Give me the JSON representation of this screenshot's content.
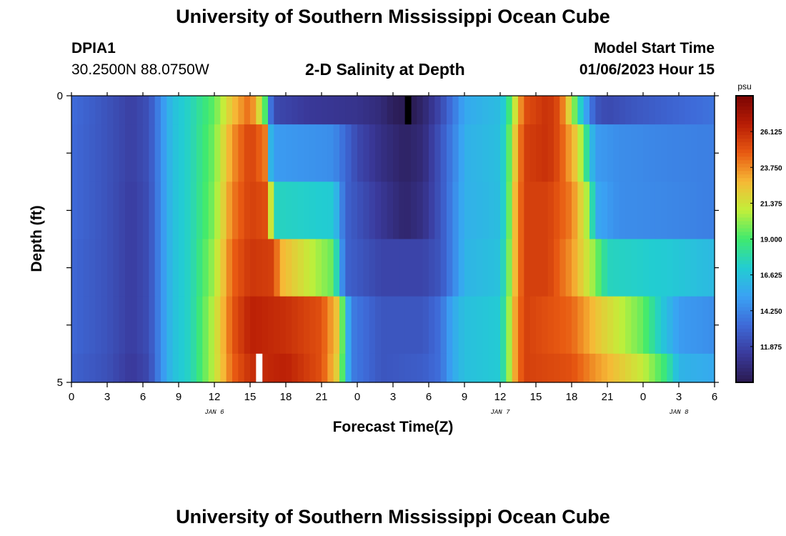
{
  "header": {
    "title": "University of Southern Mississippi Ocean Cube",
    "station_id": "DPIA1",
    "station_coords": "30.2500N  88.0750W",
    "model_start_label": "Model Start Time",
    "model_start_value": "01/06/2023 Hour 15"
  },
  "footer": {
    "title": "University of Southern Mississippi Ocean Cube"
  },
  "chart_data": {
    "type": "heatmap",
    "title": "2-D Salinity at Depth",
    "xlabel": "Forecast Time(Z)",
    "ylabel": "Depth (ft)",
    "x_tick_labels": [
      "0",
      "3",
      "6",
      "9",
      "12",
      "15",
      "18",
      "21",
      "0",
      "3",
      "6",
      "9",
      "12",
      "15",
      "18",
      "21",
      "0",
      "3",
      "6"
    ],
    "x_range_hours": [
      0,
      54
    ],
    "date_labels": [
      {
        "text": "JAN 6",
        "hour": 12
      },
      {
        "text": "JAN 7",
        "hour": 36
      },
      {
        "text": "JAN 8",
        "hour": 51
      }
    ],
    "y_tick_labels": [
      "0",
      "5"
    ],
    "y_range_ft": [
      0,
      5
    ],
    "depth_levels_ft": [
      0,
      1,
      2,
      3,
      4,
      5
    ],
    "colorbar": {
      "unit": "psu",
      "min": 9.5,
      "max": 28.5,
      "tick_labels": [
        "26.125",
        "23.750",
        "21.375",
        "19.000",
        "16.625",
        "14.250",
        "11.875"
      ],
      "tick_values": [
        26.125,
        23.75,
        21.375,
        19.0,
        16.625,
        14.25,
        11.875
      ]
    },
    "colormap": [
      "#2a1a50",
      "#3a3a9c",
      "#3e6ad8",
      "#3aa2f4",
      "#22cdd2",
      "#40ea6e",
      "#c2ef3a",
      "#f6b936",
      "#e85a12",
      "#b81c05",
      "#7a0503"
    ],
    "series": [
      {
        "depth_band": 0,
        "keyframes": [
          [
            0,
            13.4
          ],
          [
            3,
            12.4
          ],
          [
            5,
            11.6
          ],
          [
            6.5,
            12.3
          ],
          [
            7.5,
            14.5
          ],
          [
            8.5,
            16.5
          ],
          [
            10,
            17.5
          ],
          [
            12,
            19.5
          ],
          [
            13.5,
            22.5
          ],
          [
            15,
            24.5
          ],
          [
            16.2,
            20
          ],
          [
            16.5,
            15
          ],
          [
            17,
            12
          ],
          [
            20,
            11.3
          ],
          [
            24,
            11.0
          ],
          [
            26,
            10.5
          ],
          [
            27,
            9.8
          ],
          [
            28.5,
            9.5
          ],
          [
            29.5,
            10.2
          ],
          [
            31,
            12.0
          ],
          [
            32.5,
            14.5
          ],
          [
            33,
            15.5
          ],
          [
            36,
            16.4
          ],
          [
            36.5,
            17.5
          ],
          [
            37.2,
            21
          ],
          [
            38,
            25
          ],
          [
            40,
            26
          ],
          [
            41,
            25
          ],
          [
            42,
            21
          ],
          [
            43,
            16
          ],
          [
            44,
            12.5
          ],
          [
            45,
            12.0
          ],
          [
            47,
            12.5
          ],
          [
            50,
            13.0
          ],
          [
            54,
            13.6
          ]
        ]
      },
      {
        "depth_band": 1,
        "keyframes": [
          [
            0,
            13.3
          ],
          [
            3,
            12.4
          ],
          [
            5,
            11.6
          ],
          [
            6.5,
            12.3
          ],
          [
            7.5,
            14.5
          ],
          [
            8.5,
            16.5
          ],
          [
            10,
            17.5
          ],
          [
            12,
            19.8
          ],
          [
            13.5,
            23.5
          ],
          [
            15,
            25.5
          ],
          [
            16.3,
            24
          ],
          [
            16.5,
            17
          ],
          [
            17,
            15
          ],
          [
            22,
            14.5
          ],
          [
            24,
            12.0
          ],
          [
            26,
            10.8
          ],
          [
            28,
            10.0
          ],
          [
            29.5,
            10.5
          ],
          [
            31,
            12.5
          ],
          [
            32.5,
            14.8
          ],
          [
            33,
            15.8
          ],
          [
            36,
            16.5
          ],
          [
            36.5,
            18
          ],
          [
            37.2,
            22
          ],
          [
            38,
            25.5
          ],
          [
            40,
            26
          ],
          [
            41,
            25
          ],
          [
            42.5,
            22
          ],
          [
            43.5,
            17
          ],
          [
            44,
            15
          ],
          [
            46,
            14.5
          ],
          [
            50,
            14.2
          ],
          [
            54,
            14.0
          ]
        ]
      },
      {
        "depth_band": 2,
        "keyframes": [
          [
            0,
            13.3
          ],
          [
            3,
            12.4
          ],
          [
            5,
            11.5
          ],
          [
            6.5,
            12.2
          ],
          [
            7.5,
            14.5
          ],
          [
            8.5,
            16.5
          ],
          [
            10,
            17.5
          ],
          [
            12,
            20.0
          ],
          [
            13.5,
            24.0
          ],
          [
            15,
            25.5
          ],
          [
            16.5,
            25
          ],
          [
            17,
            17.5
          ],
          [
            22,
            17.0
          ],
          [
            22.5,
            15
          ],
          [
            23,
            13
          ],
          [
            26,
            11.2
          ],
          [
            28,
            10.2
          ],
          [
            29.5,
            10.8
          ],
          [
            31,
            12.5
          ],
          [
            32.5,
            15.0
          ],
          [
            33,
            15.8
          ],
          [
            36,
            16.4
          ],
          [
            36.5,
            18
          ],
          [
            37.2,
            22.5
          ],
          [
            38,
            25.5
          ],
          [
            40,
            25.5
          ],
          [
            42,
            24
          ],
          [
            43.5,
            20
          ],
          [
            44,
            15.5
          ],
          [
            46,
            14.5
          ],
          [
            50,
            14.3
          ],
          [
            54,
            14.0
          ]
        ]
      },
      {
        "depth_band": 3,
        "keyframes": [
          [
            0,
            13.2
          ],
          [
            3,
            12.4
          ],
          [
            5,
            11.5
          ],
          [
            6.5,
            12.2
          ],
          [
            7.5,
            14.5
          ],
          [
            8.5,
            16.5
          ],
          [
            10,
            17.5
          ],
          [
            12,
            20.5
          ],
          [
            13.5,
            24.5
          ],
          [
            15,
            25.8
          ],
          [
            17,
            25.5
          ],
          [
            17.5,
            23
          ],
          [
            20,
            21
          ],
          [
            22,
            19.5
          ],
          [
            22.5,
            16
          ],
          [
            23,
            13
          ],
          [
            26,
            11.8
          ],
          [
            29.5,
            11.8
          ],
          [
            31,
            12.5
          ],
          [
            32.5,
            15.0
          ],
          [
            33,
            16.0
          ],
          [
            36,
            16.6
          ],
          [
            36.5,
            18.5
          ],
          [
            37.2,
            22.5
          ],
          [
            38,
            25.5
          ],
          [
            40,
            25.5
          ],
          [
            42,
            23.5
          ],
          [
            44,
            20
          ],
          [
            45,
            17.5
          ],
          [
            50,
            17.0
          ],
          [
            54,
            16.2
          ]
        ]
      },
      {
        "depth_band": 4,
        "keyframes": [
          [
            0,
            13.2
          ],
          [
            3,
            12.4
          ],
          [
            5,
            11.5
          ],
          [
            6.5,
            12.2
          ],
          [
            7.5,
            14.5
          ],
          [
            8.5,
            16.5
          ],
          [
            10,
            17.5
          ],
          [
            12,
            21.0
          ],
          [
            13.5,
            24.8
          ],
          [
            15,
            26.5
          ],
          [
            18,
            26.0
          ],
          [
            21,
            25.0
          ],
          [
            22.5,
            22
          ],
          [
            23,
            17
          ],
          [
            23.5,
            14
          ],
          [
            26,
            12.5
          ],
          [
            29.5,
            12.5
          ],
          [
            31,
            13.5
          ],
          [
            32,
            15.5
          ],
          [
            33,
            16.5
          ],
          [
            36,
            17.0
          ],
          [
            36.5,
            19
          ],
          [
            37.2,
            23
          ],
          [
            38,
            25.5
          ],
          [
            42,
            24.5
          ],
          [
            44,
            22.5
          ],
          [
            48,
            19.5
          ],
          [
            49.5,
            17
          ],
          [
            51,
            15.0
          ],
          [
            54,
            14.5
          ]
        ]
      },
      {
        "depth_band": 5,
        "keyframes": [
          [
            0,
            13.0
          ],
          [
            3,
            12.3
          ],
          [
            5,
            11.3
          ],
          [
            6.5,
            12.0
          ],
          [
            7.5,
            14.5
          ],
          [
            8.5,
            16.5
          ],
          [
            10,
            17.5
          ],
          [
            12,
            21.0
          ],
          [
            13.5,
            24.5
          ],
          [
            15,
            26.0
          ],
          [
            18,
            26.5
          ],
          [
            21,
            25.0
          ],
          [
            22.5,
            21.5
          ],
          [
            23,
            17
          ],
          [
            23.5,
            14
          ],
          [
            26,
            12.5
          ],
          [
            29.5,
            12.8
          ],
          [
            31,
            13.5
          ],
          [
            32,
            15.5
          ],
          [
            33,
            16.5
          ],
          [
            36,
            17.0
          ],
          [
            36.5,
            19
          ],
          [
            37.2,
            23
          ],
          [
            38,
            25.5
          ],
          [
            42,
            25.0
          ],
          [
            44,
            23.5
          ],
          [
            48,
            21.0
          ],
          [
            50,
            18.5
          ],
          [
            51,
            16.0
          ],
          [
            54,
            15.5
          ]
        ]
      }
    ],
    "missing_cells": [
      {
        "hour": 28,
        "depth_band": 0
      },
      {
        "hour": 15.5,
        "depth_band": 5
      }
    ]
  }
}
